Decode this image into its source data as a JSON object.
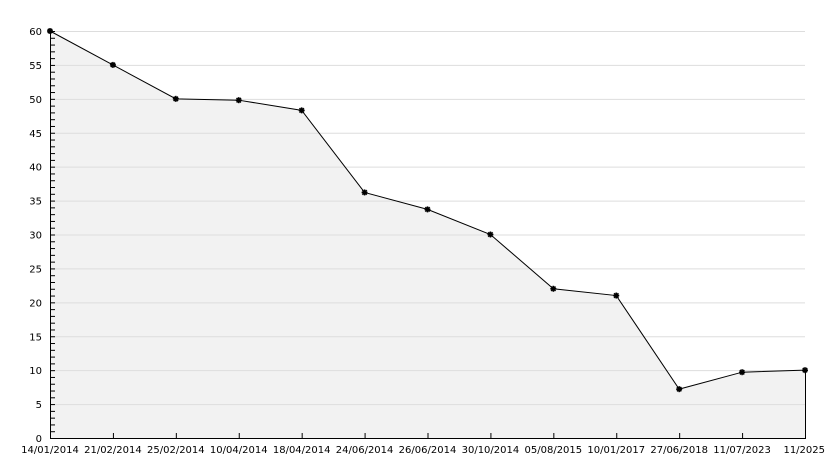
{
  "chart_data": {
    "type": "area",
    "categories": [
      "14/01/2014",
      "21/02/2014",
      "25/02/2014",
      "10/04/2014",
      "18/04/2014",
      "24/06/2014",
      "26/06/2014",
      "30/10/2014",
      "05/08/2015",
      "10/01/2017",
      "27/06/2018",
      "11/07/2023",
      "11/2025"
    ],
    "values": [
      60,
      55,
      50,
      49.8,
      48.3,
      36.2,
      33.7,
      30,
      22,
      21,
      7.2,
      9.7,
      10
    ],
    "ylim": [
      0,
      60
    ],
    "yticks": [
      0,
      5,
      10,
      15,
      20,
      25,
      30,
      35,
      40,
      45,
      50,
      55,
      60
    ],
    "grid": true,
    "fill_color": "#f2f2f2",
    "line_color": "#000000",
    "grid_color": "#dddddd"
  }
}
